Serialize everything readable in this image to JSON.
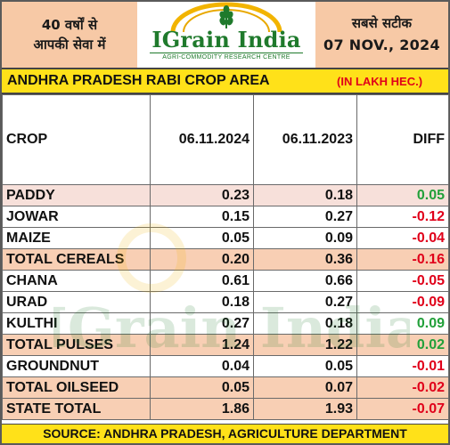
{
  "header": {
    "left_line1": "40 वर्षों से",
    "left_line2": "आपकी सेवा में",
    "logo_name": "IGrain India",
    "logo_tagline": "AGRI-COMMODITY RESEARCH CENTRE",
    "right_line1": "सबसे सटीक",
    "right_date": "07 NOV., 2024",
    "bg_color": "#f7c9a6"
  },
  "title": {
    "main": "ANDHRA PRADESH RABI CROP AREA",
    "unit": "(IN LAKH HEC.)"
  },
  "table": {
    "columns": [
      "CROP",
      "06.11.2024",
      "06.11.2023",
      "DIFF"
    ],
    "rows": [
      {
        "crop": "PADDY",
        "y2024": "0.23",
        "y2023": "0.18",
        "diff": "0.05",
        "sign": "pos",
        "shade": "pink"
      },
      {
        "crop": "JOWAR",
        "y2024": "0.15",
        "y2023": "0.27",
        "diff": "-0.12",
        "sign": "neg",
        "shade": "white"
      },
      {
        "crop": "MAIZE",
        "y2024": "0.05",
        "y2023": "0.09",
        "diff": "-0.04",
        "sign": "neg",
        "shade": "white"
      },
      {
        "crop": "TOTAL CEREALS",
        "y2024": "0.20",
        "y2023": "0.36",
        "diff": "-0.16",
        "sign": "neg",
        "shade": "peach"
      },
      {
        "crop": "CHANA",
        "y2024": "0.61",
        "y2023": "0.66",
        "diff": "-0.05",
        "sign": "neg",
        "shade": "white"
      },
      {
        "crop": "URAD",
        "y2024": "0.18",
        "y2023": "0.27",
        "diff": "-0.09",
        "sign": "neg",
        "shade": "white"
      },
      {
        "crop": "KULTHI",
        "y2024": "0.27",
        "y2023": "0.18",
        "diff": "0.09",
        "sign": "pos",
        "shade": "white"
      },
      {
        "crop": "TOTAL PULSES",
        "y2024": "1.24",
        "y2023": "1.22",
        "diff": "0.02",
        "sign": "pos",
        "shade": "peach"
      },
      {
        "crop": "GROUNDNUT",
        "y2024": "0.04",
        "y2023": "0.05",
        "diff": "-0.01",
        "sign": "neg",
        "shade": "white"
      },
      {
        "crop": "TOTAL OILSEED",
        "y2024": "0.05",
        "y2023": "0.07",
        "diff": "-0.02",
        "sign": "neg",
        "shade": "peach"
      },
      {
        "crop": "STATE TOTAL",
        "y2024": "1.86",
        "y2023": "1.93",
        "diff": "-0.07",
        "sign": "neg",
        "shade": "peach"
      }
    ]
  },
  "footer": {
    "source": "SOURCE: ANDHRA PRADESH, AGRICULTURE DEPARTMENT"
  },
  "watermark": {
    "text": "IGrain India"
  },
  "colors": {
    "positive": "#22a03a",
    "negative": "#e0001a",
    "title_bar": "#ffe119",
    "unit_text": "#e0001a",
    "logo_green": "#1f7a2c"
  }
}
